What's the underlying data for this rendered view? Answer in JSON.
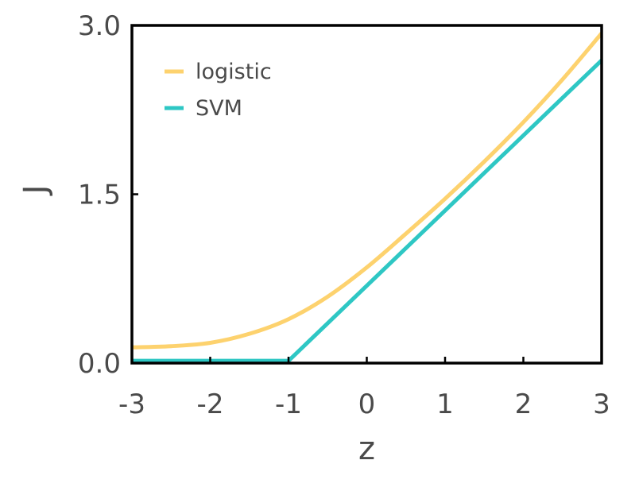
{
  "chart_data": {
    "type": "line",
    "xlabel": "z",
    "ylabel": "J",
    "xlim": [
      -3,
      3
    ],
    "ylim": [
      0,
      3
    ],
    "xticks": [
      -3,
      -2,
      -1,
      0,
      1,
      2,
      3
    ],
    "xtick_labels": [
      "-3",
      "-2",
      "-1",
      "0",
      "1",
      "2",
      "3"
    ],
    "yticks": [
      0,
      1.5,
      3
    ],
    "ytick_labels": [
      "0.0",
      "1.5",
      "3.0"
    ],
    "grid": false,
    "legend": "top-left",
    "series": [
      {
        "name": "logistic",
        "color": "#fdd26e",
        "x": [
          -3,
          -2.5,
          -2,
          -1.5,
          -1,
          -0.5,
          0,
          0.5,
          1,
          1.5,
          2,
          2.5,
          3
        ],
        "y": [
          0.14,
          0.15,
          0.18,
          0.26,
          0.39,
          0.59,
          0.85,
          1.15,
          1.46,
          1.79,
          2.14,
          2.52,
          2.93
        ]
      },
      {
        "name": "SVM",
        "color": "#2ec7c4",
        "x": [
          -3,
          -1,
          3
        ],
        "y": [
          0.02,
          0.02,
          2.69
        ]
      }
    ]
  }
}
